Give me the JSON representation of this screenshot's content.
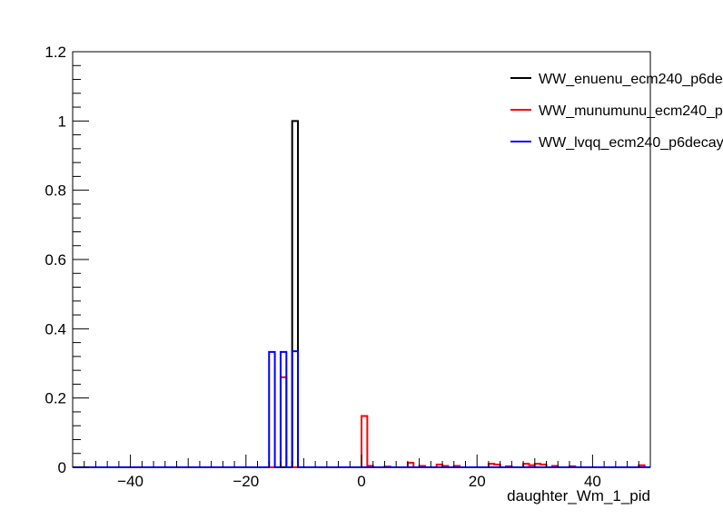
{
  "chart_data": {
    "type": "histogram-step",
    "title": "",
    "xlabel": "daughter_Wm_1_pid",
    "ylabel": "",
    "xlim": [
      -50,
      50
    ],
    "ylim": [
      0,
      1.2
    ],
    "xticks": [
      -40,
      -20,
      0,
      20,
      40
    ],
    "yticks": [
      0,
      0.2,
      0.4,
      0.6,
      0.8,
      1,
      1.2
    ],
    "xtick_labels": [
      "−40",
      "−20",
      "0",
      "20",
      "40"
    ],
    "ytick_labels": [
      "0",
      "0.2",
      "0.4",
      "0.6",
      "0.8",
      "1",
      "1.2"
    ],
    "grid": false,
    "legend_position": "top-right",
    "bin_width": 1,
    "series": [
      {
        "name": "WW_enuenu_ecm240_p6de",
        "color": "#000000",
        "bins": [
          [
            -12,
            1.0
          ]
        ]
      },
      {
        "name": "WW_munumunu_ecm240_p",
        "color": "#ff0000",
        "bins": [
          [
            -14,
            0.26
          ],
          [
            0,
            0.148
          ],
          [
            1,
            0.004
          ],
          [
            4,
            0.002
          ],
          [
            8,
            0.013
          ],
          [
            10,
            0.004
          ],
          [
            13,
            0.008
          ],
          [
            14,
            0.004
          ],
          [
            16,
            0.004
          ],
          [
            22,
            0.01
          ],
          [
            23,
            0.008
          ],
          [
            25,
            0.003
          ],
          [
            28,
            0.01
          ],
          [
            29,
            0.006
          ],
          [
            30,
            0.01
          ],
          [
            31,
            0.008
          ],
          [
            33,
            0.004
          ],
          [
            36,
            0.003
          ],
          [
            48,
            0.006
          ]
        ]
      },
      {
        "name": "WW_lvqq_ecm240_p6decay",
        "color": "#0000ff",
        "bins": [
          [
            -16,
            0.333
          ],
          [
            -14,
            0.333
          ],
          [
            -12,
            0.335
          ]
        ]
      }
    ]
  }
}
